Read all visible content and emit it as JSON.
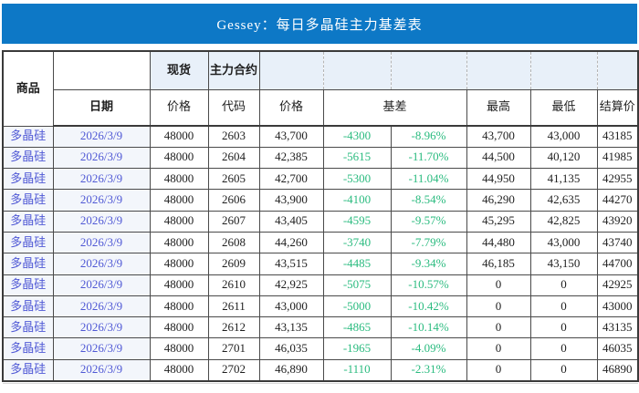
{
  "title": "Gessey：每日多晶硅主力基差表",
  "colors": {
    "title_bar": "#0d78c6",
    "header_fill": "#e8f0f9",
    "basis_green": "#2abb7f",
    "commodity_blue": "#4f58d5",
    "grid_line": "#4a4a4a"
  },
  "header": {
    "commodity": "商品",
    "date": "日期",
    "spot_group": "现货",
    "main_contract_group": "主力合约",
    "spot_price": "价格",
    "code": "代码",
    "main_price": "价格",
    "basis": "基差",
    "high": "最高",
    "low": "最低",
    "settlement": "结算价"
  },
  "rows": [
    {
      "commodity": "多晶硅",
      "date": "2026/3/9",
      "spot_price": "48000",
      "code": "2603",
      "price": "43,700",
      "basis": "-4300",
      "basis_pct": "-8.96%",
      "high": "43,700",
      "low": "43,000",
      "settlement": "43185"
    },
    {
      "commodity": "多晶硅",
      "date": "2026/3/9",
      "spot_price": "48000",
      "code": "2604",
      "price": "42,385",
      "basis": "-5615",
      "basis_pct": "-11.70%",
      "high": "44,500",
      "low": "40,120",
      "settlement": "41985"
    },
    {
      "commodity": "多晶硅",
      "date": "2026/3/9",
      "spot_price": "48000",
      "code": "2605",
      "price": "42,700",
      "basis": "-5300",
      "basis_pct": "-11.04%",
      "high": "44,950",
      "low": "41,135",
      "settlement": "42955"
    },
    {
      "commodity": "多晶硅",
      "date": "2026/3/9",
      "spot_price": "48000",
      "code": "2606",
      "price": "43,900",
      "basis": "-4100",
      "basis_pct": "-8.54%",
      "high": "46,290",
      "low": "42,635",
      "settlement": "44270"
    },
    {
      "commodity": "多晶硅",
      "date": "2026/3/9",
      "spot_price": "48000",
      "code": "2607",
      "price": "43,405",
      "basis": "-4595",
      "basis_pct": "-9.57%",
      "high": "45,295",
      "low": "42,825",
      "settlement": "43920"
    },
    {
      "commodity": "多晶硅",
      "date": "2026/3/9",
      "spot_price": "48000",
      "code": "2608",
      "price": "44,260",
      "basis": "-3740",
      "basis_pct": "-7.79%",
      "high": "44,480",
      "low": "43,000",
      "settlement": "43740"
    },
    {
      "commodity": "多晶硅",
      "date": "2026/3/9",
      "spot_price": "48000",
      "code": "2609",
      "price": "43,515",
      "basis": "-4485",
      "basis_pct": "-9.34%",
      "high": "46,185",
      "low": "43,150",
      "settlement": "44700"
    },
    {
      "commodity": "多晶硅",
      "date": "2026/3/9",
      "spot_price": "48000",
      "code": "2610",
      "price": "42,925",
      "basis": "-5075",
      "basis_pct": "-10.57%",
      "high": "0",
      "low": "0",
      "settlement": "42925"
    },
    {
      "commodity": "多晶硅",
      "date": "2026/3/9",
      "spot_price": "48000",
      "code": "2611",
      "price": "43,000",
      "basis": "-5000",
      "basis_pct": "-10.42%",
      "high": "0",
      "low": "0",
      "settlement": "43000"
    },
    {
      "commodity": "多晶硅",
      "date": "2026/3/9",
      "spot_price": "48000",
      "code": "2612",
      "price": "43,135",
      "basis": "-4865",
      "basis_pct": "-10.14%",
      "high": "0",
      "low": "0",
      "settlement": "43135"
    },
    {
      "commodity": "多晶硅",
      "date": "2026/3/9",
      "spot_price": "48000",
      "code": "2701",
      "price": "46,035",
      "basis": "-1965",
      "basis_pct": "-4.09%",
      "high": "0",
      "low": "0",
      "settlement": "46035"
    },
    {
      "commodity": "多晶硅",
      "date": "2026/3/9",
      "spot_price": "48000",
      "code": "2702",
      "price": "46,890",
      "basis": "-1110",
      "basis_pct": "-2.31%",
      "high": "0",
      "low": "0",
      "settlement": "46890"
    }
  ]
}
